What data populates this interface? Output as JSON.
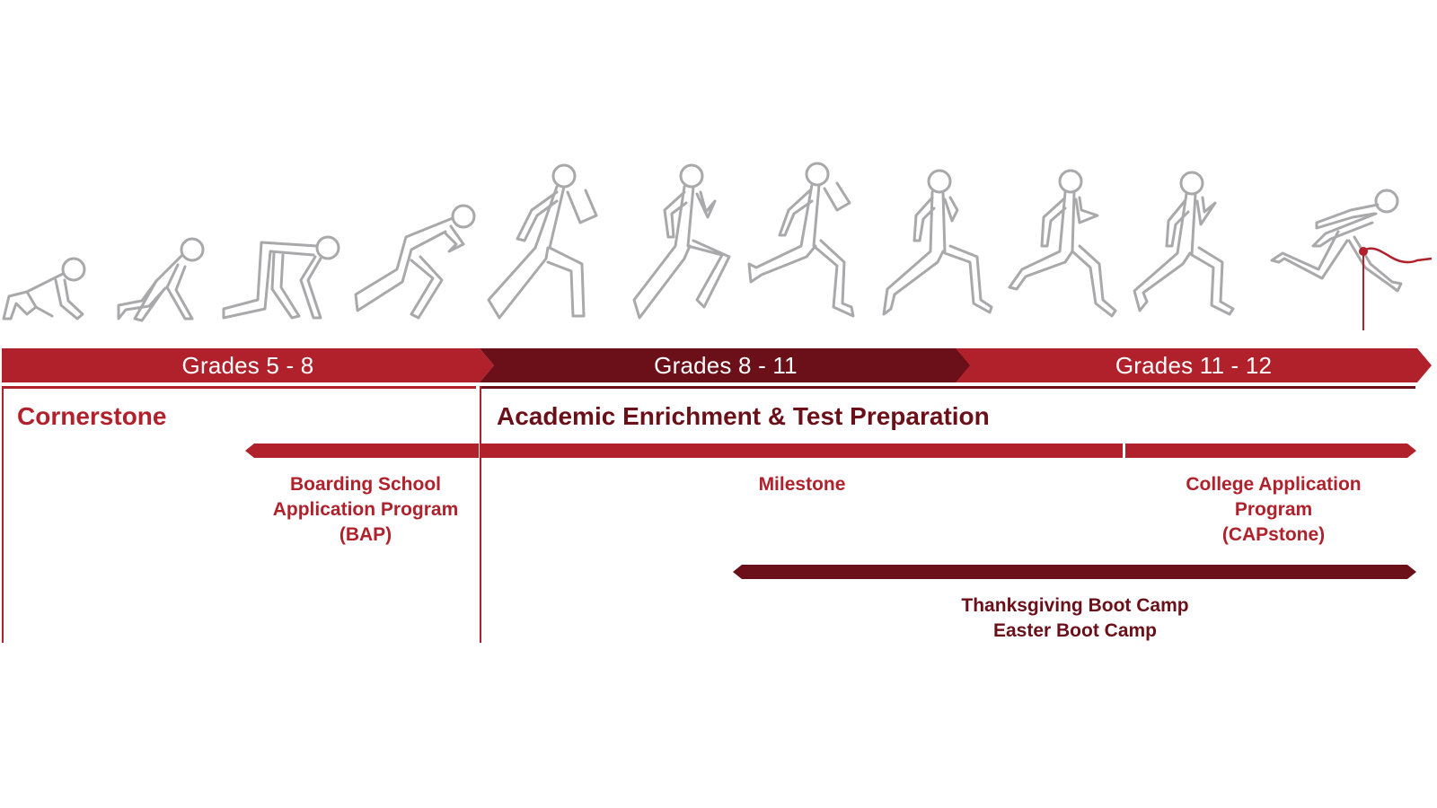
{
  "colors": {
    "red": "#b0212c",
    "dark_red": "#6b0f18",
    "gray": "#a9a9ab"
  },
  "icons": [
    "runner-icon",
    "finish-line-ribbon-icon"
  ],
  "grades": [
    {
      "label": "Grades 5 - 8"
    },
    {
      "label": "Grades 8 - 11"
    },
    {
      "label": "Grades 11 - 12"
    }
  ],
  "sections": {
    "cornerstone": "Cornerstone",
    "academic": "Academic Enrichment & Test Preparation"
  },
  "programs": {
    "bap": [
      "Boarding School",
      "Application Program",
      "(BAP)"
    ],
    "milestone": [
      "Milestone"
    ],
    "capstone": [
      "College Application",
      "Program",
      "(CAPstone)"
    ],
    "bootcamp": [
      "Thanksgiving Boot Camp",
      "Easter Boot Camp"
    ]
  }
}
